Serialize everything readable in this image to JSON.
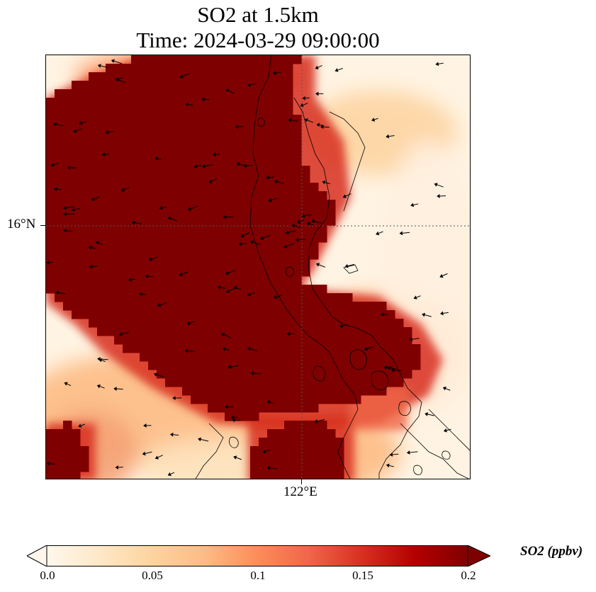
{
  "title": {
    "line1": "SO2 at 1.5km",
    "line2": "Time: 2024-03-29 09:00:00"
  },
  "axes": {
    "lat_tick": "16°N",
    "lon_tick": "122°E"
  },
  "colorbar": {
    "label": "SO2 (ppbv)",
    "ticks": [
      "0.0",
      "0.05",
      "0.1",
      "0.15",
      "0.2"
    ],
    "min": 0.0,
    "max": 0.2,
    "colormap": "OrRd",
    "extend": "both",
    "colors": [
      "#fff7ec",
      "#fee8c8",
      "#fdd49e",
      "#fdbb84",
      "#fc8d59",
      "#ef6548",
      "#d7301f",
      "#b30000",
      "#7f0000"
    ]
  },
  "map": {
    "background_color": "#fff4e3",
    "high_color": "#7f0000",
    "gridline_style": "dotted",
    "coastline_color": "#000000",
    "wind_vectors": true
  }
}
